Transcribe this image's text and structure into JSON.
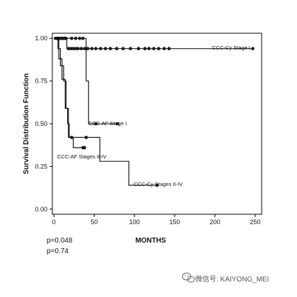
{
  "chart_data": {
    "type": "line",
    "title": "",
    "xlabel": "MONTHS",
    "ylabel": "Survival Distribution Function",
    "xlim": [
      0,
      250
    ],
    "ylim": [
      0,
      1
    ],
    "x_ticks": [
      "0",
      "50",
      "100",
      "150",
      "200",
      "250"
    ],
    "y_ticks": [
      "0.00",
      "0.25",
      "0.50",
      "0.75",
      "1.00"
    ],
    "grid": false,
    "series": [
      {
        "name": "CCC-Cy Stage I",
        "step_points": [
          [
            0,
            1.0
          ],
          [
            16,
            1.0
          ],
          [
            16,
            0.94
          ],
          [
            247,
            0.94
          ]
        ],
        "censor_x": [
          3,
          5,
          7,
          9,
          11,
          13,
          15,
          18,
          21,
          24,
          27,
          30,
          34,
          38,
          42,
          47,
          52,
          58,
          64,
          70,
          78,
          86,
          95,
          105,
          113,
          118,
          124,
          130,
          137,
          143,
          247
        ]
      },
      {
        "name": "CCC-AF Stage I",
        "step_points": [
          [
            0,
            1.0
          ],
          [
            40,
            1.0
          ],
          [
            40,
            0.75
          ],
          [
            43,
            0.75
          ],
          [
            43,
            0.5
          ],
          [
            79,
            0.5
          ]
        ],
        "censor_x": [
          2,
          5,
          8,
          12,
          22,
          27,
          32,
          36,
          52,
          79
        ]
      },
      {
        "name": "CCC-AF Stages II-IV",
        "step_points": [
          [
            0,
            1.0
          ],
          [
            5,
            1.0
          ],
          [
            5,
            0.94
          ],
          [
            8,
            0.94
          ],
          [
            8,
            0.84
          ],
          [
            12,
            0.84
          ],
          [
            12,
            0.75
          ],
          [
            15,
            0.75
          ],
          [
            15,
            0.59
          ],
          [
            17,
            0.59
          ],
          [
            17,
            0.5
          ],
          [
            19,
            0.5
          ],
          [
            19,
            0.42
          ],
          [
            24,
            0.42
          ],
          [
            24,
            0.36
          ],
          [
            38,
            0.36
          ]
        ],
        "censor_x": [
          3,
          36,
          38
        ]
      },
      {
        "name": "CCC-Cy Stages II-IV",
        "step_points": [
          [
            0,
            1.0
          ],
          [
            6,
            1.0
          ],
          [
            6,
            0.88
          ],
          [
            10,
            0.88
          ],
          [
            10,
            0.76
          ],
          [
            14,
            0.76
          ],
          [
            14,
            0.59
          ],
          [
            18,
            0.59
          ],
          [
            18,
            0.42
          ],
          [
            57,
            0.42
          ],
          [
            57,
            0.28
          ],
          [
            93,
            0.28
          ],
          [
            93,
            0.14
          ],
          [
            128,
            0.14
          ]
        ],
        "censor_x": [
          22,
          40,
          128
        ]
      }
    ],
    "annotations": [
      {
        "text": "CCC-Cy Stage I"
      },
      {
        "text": "CCC-AF Stage I"
      },
      {
        "text": "CCC-AF Stages II-IV"
      },
      {
        "text": "CCC-Cy Stages II-IV"
      }
    ],
    "p_values": [
      "p=0.048",
      "p=0.74"
    ]
  },
  "watermark": {
    "icon": "wechat-icon",
    "text": "微信号: KAIYONG_MEI"
  }
}
